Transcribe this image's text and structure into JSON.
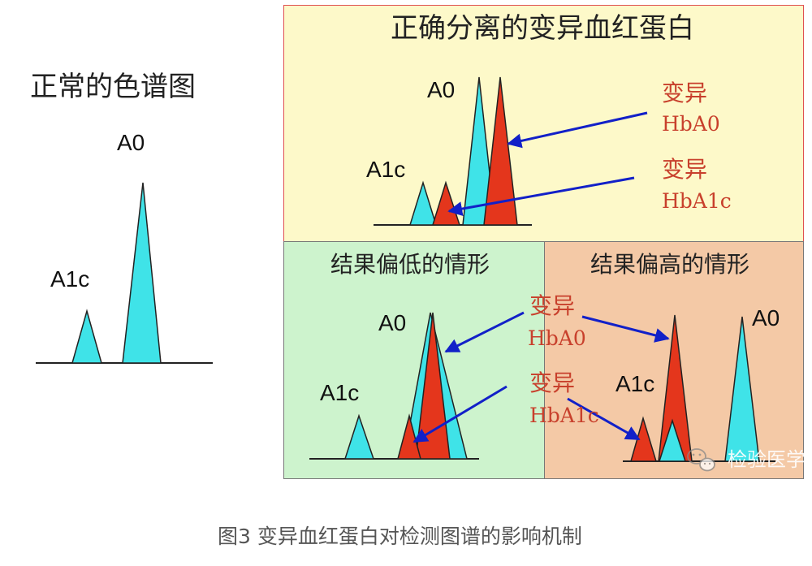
{
  "colors": {
    "peak_normal": "#3fe3e8",
    "peak_variant": "#e4361c",
    "arrow": "#1220c8",
    "variant_text": "#c8402c",
    "top_panel_bg": "#fdf9c9",
    "top_panel_border": "#e05050",
    "low_panel_bg": "#cdf3cd",
    "high_panel_bg": "#f4c9a6",
    "caption": "#555555"
  },
  "normal": {
    "title": "正常的色谱图",
    "label_a0": "A0",
    "label_a1c": "A1c"
  },
  "separated": {
    "title": "正确分离的变异血红蛋白",
    "label_a0": "A0",
    "label_a1c": "A1c",
    "variant1_line1": "变异",
    "variant1_line2": "HbA0",
    "variant2_line1": "变异",
    "variant2_line2": "HbA1c"
  },
  "low": {
    "title": "结果偏低的情形",
    "label_a0": "A0",
    "label_a1c": "A1c"
  },
  "high": {
    "title": "结果偏高的情形",
    "label_a0": "A0",
    "label_a1c": "A1c"
  },
  "middle_labels": {
    "variant1_line1": "变异",
    "variant1_line2": "HbA0",
    "variant2_line1": "变异",
    "variant2_line2": "HbA1c"
  },
  "watermark": {
    "text": "检验医学",
    "icon": "wechat-icon"
  },
  "caption": "图3 变异血红蛋白对检测图谱的影响机制"
}
